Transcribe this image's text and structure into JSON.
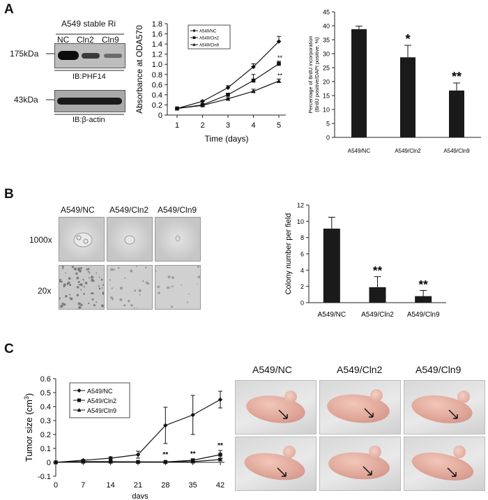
{
  "panel_labels": {
    "a": "A",
    "b": "B",
    "c": "C"
  },
  "western_blot": {
    "title": "A549 stable Ri",
    "lanes": [
      "NC",
      "Cln2",
      "Cln9"
    ],
    "marker_top": "175kDa",
    "marker_bottom": "43kDa",
    "ib_top": "IB:PHF14",
    "ib_bottom": "IB:β-actin"
  },
  "colony_images": {
    "columns": [
      "A549/NC",
      "A549/Cln2",
      "A549/Cln9"
    ],
    "rows": [
      "1000x",
      "20x"
    ]
  },
  "mouse_images": {
    "columns": [
      "A549/NC",
      "A549/Cln2",
      "A549/Cln9"
    ]
  },
  "chart_data": [
    {
      "id": "absorbance",
      "type": "line",
      "title": "",
      "xlabel": "Time (days)",
      "ylabel": "Absorbance at ODA570",
      "x": [
        1,
        2,
        3,
        4,
        5
      ],
      "xticks": [
        "1",
        "2",
        "3",
        "4",
        "5"
      ],
      "yticks": [
        "0",
        "0.2",
        "0.4",
        "0.6",
        "0.8",
        "1.0",
        "1.2",
        "1.4",
        "1.6",
        "1.8"
      ],
      "ylim": [
        0,
        1.8
      ],
      "series": [
        {
          "name": "A549/NC",
          "marker": "diamond",
          "values": [
            0.13,
            0.27,
            0.54,
            0.95,
            1.45
          ],
          "errors": [
            0.01,
            0.02,
            0.04,
            0.06,
            0.1
          ]
        },
        {
          "name": "A549/Cln2",
          "marker": "square",
          "values": [
            0.13,
            0.2,
            0.4,
            0.68,
            1.01
          ],
          "errors": [
            0.01,
            0.02,
            0.03,
            0.12,
            0.05
          ]
        },
        {
          "name": "A549/Cln9",
          "marker": "triangle",
          "values": [
            0.13,
            0.19,
            0.32,
            0.47,
            0.67
          ],
          "errors": [
            0.01,
            0.01,
            0.02,
            0.04,
            0.04
          ]
        }
      ],
      "annotations": [
        "**",
        "**"
      ]
    },
    {
      "id": "brdu",
      "type": "bar",
      "title": "",
      "xlabel": "",
      "ylabel": "Percentage of BrdU incorporation (BrdU positive/DAPI positive, %)",
      "categories": [
        "A549/NC",
        "A549/Cln2",
        "A549/Cln9"
      ],
      "values": [
        38.8,
        28.7,
        16.8
      ],
      "errors": [
        1.1,
        4.3,
        2.7
      ],
      "significance": [
        "",
        "*",
        "**"
      ],
      "yticks": [
        "0",
        "5",
        "10",
        "15",
        "20",
        "25",
        "30",
        "35",
        "40",
        "45"
      ],
      "ylim": [
        0,
        45
      ]
    },
    {
      "id": "colony",
      "type": "bar",
      "title": "",
      "xlabel": "",
      "ylabel": "Colony number per field",
      "categories": [
        "A549/NC",
        "A549/Cln2",
        "A549/Cln9"
      ],
      "values": [
        9.1,
        1.9,
        0.8
      ],
      "errors": [
        1.4,
        1.3,
        0.7
      ],
      "significance": [
        "",
        "**",
        "**"
      ],
      "yticks": [
        "0",
        "2",
        "4",
        "6",
        "8",
        "10",
        "12"
      ],
      "ylim": [
        0,
        12
      ]
    },
    {
      "id": "tumor",
      "type": "line",
      "title": "",
      "xlabel": "days",
      "ylabel": "Tumor size (cm3)",
      "x": [
        0,
        7,
        14,
        21,
        28,
        35,
        42
      ],
      "xticks": [
        "0",
        "7",
        "14",
        "21",
        "28",
        "35",
        "42"
      ],
      "yticks": [
        "-0.1",
        "0",
        "0.1",
        "0.2",
        "0.3",
        "0.4",
        "0.5",
        "0.6"
      ],
      "ylim": [
        -0.1,
        0.6
      ],
      "series": [
        {
          "name": "A549/NC",
          "marker": "diamond",
          "values": [
            0,
            0.015,
            0.03,
            0.055,
            0.265,
            0.34,
            0.45
          ],
          "errors": [
            0,
            0.005,
            0.01,
            0.025,
            0.13,
            0.14,
            0.06
          ]
        },
        {
          "name": "A549/Cln2",
          "marker": "square",
          "values": [
            0,
            0.005,
            0.005,
            0.003,
            0.003,
            0.015,
            0.055
          ],
          "errors": [
            0,
            0,
            0,
            0,
            0,
            0.01,
            0.03
          ]
        },
        {
          "name": "A549/Cln9",
          "marker": "triangle",
          "values": [
            0,
            0.005,
            0.005,
            0.003,
            0.002,
            0.005,
            0.02
          ],
          "errors": [
            0,
            0,
            0,
            0,
            0,
            0,
            0.01
          ]
        }
      ],
      "annotations": [
        "**",
        "**",
        "**"
      ]
    }
  ]
}
